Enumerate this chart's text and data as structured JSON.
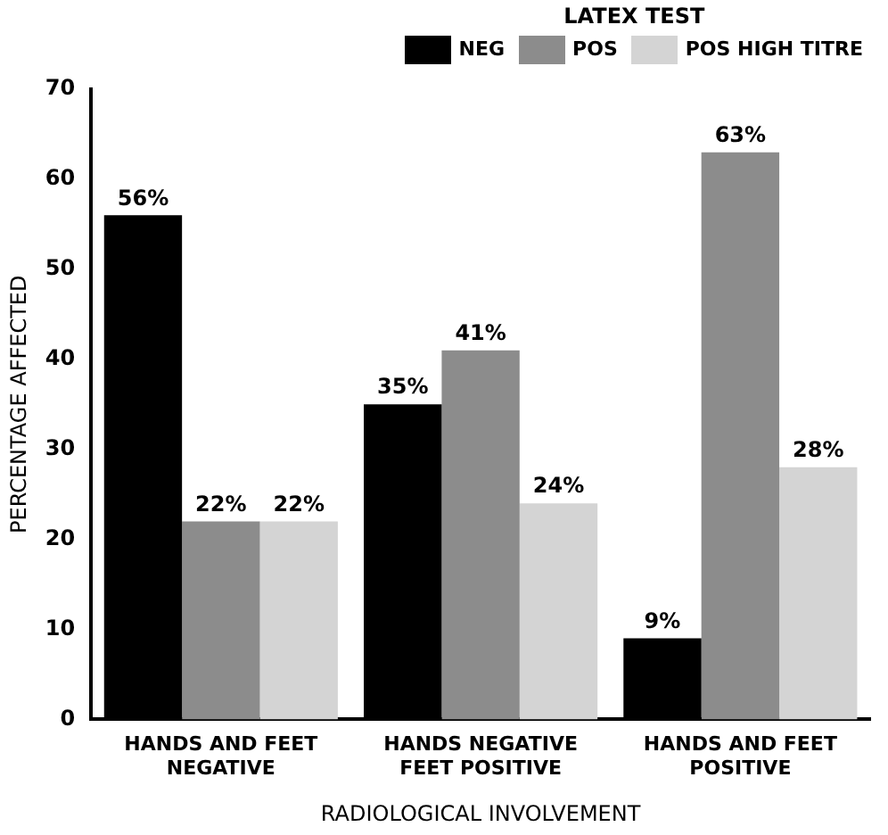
{
  "chart_data": {
    "type": "bar",
    "xlabel": "RADIOLOGICAL INVOLVEMENT",
    "ylabel": "PERCENTAGE AFFECTED",
    "legend_title": "LATEX TEST",
    "categories": [
      "HANDS AND FEET\nNEGATIVE",
      "HANDS NEGATIVE\nFEET POSITIVE",
      "HANDS AND FEET\nPOSITIVE"
    ],
    "series": [
      {
        "name": "NEG",
        "color": "#000000",
        "values": [
          56,
          35,
          9
        ],
        "value_labels": [
          "56%",
          "35%",
          "9%"
        ]
      },
      {
        "name": "POS",
        "color": "#8c8c8c",
        "values": [
          22,
          41,
          63
        ],
        "value_labels": [
          "22%",
          "41%",
          "63%"
        ]
      },
      {
        "name": "POS HIGH TITRE",
        "color": "#d4d4d4",
        "values": [
          22,
          24,
          28
        ],
        "value_labels": [
          "22%",
          "24%",
          "28%"
        ]
      }
    ],
    "ylim": [
      0,
      70
    ],
    "yticks": [
      0,
      10,
      20,
      30,
      40,
      50,
      60,
      70
    ],
    "grid": false,
    "legend": "top right"
  }
}
